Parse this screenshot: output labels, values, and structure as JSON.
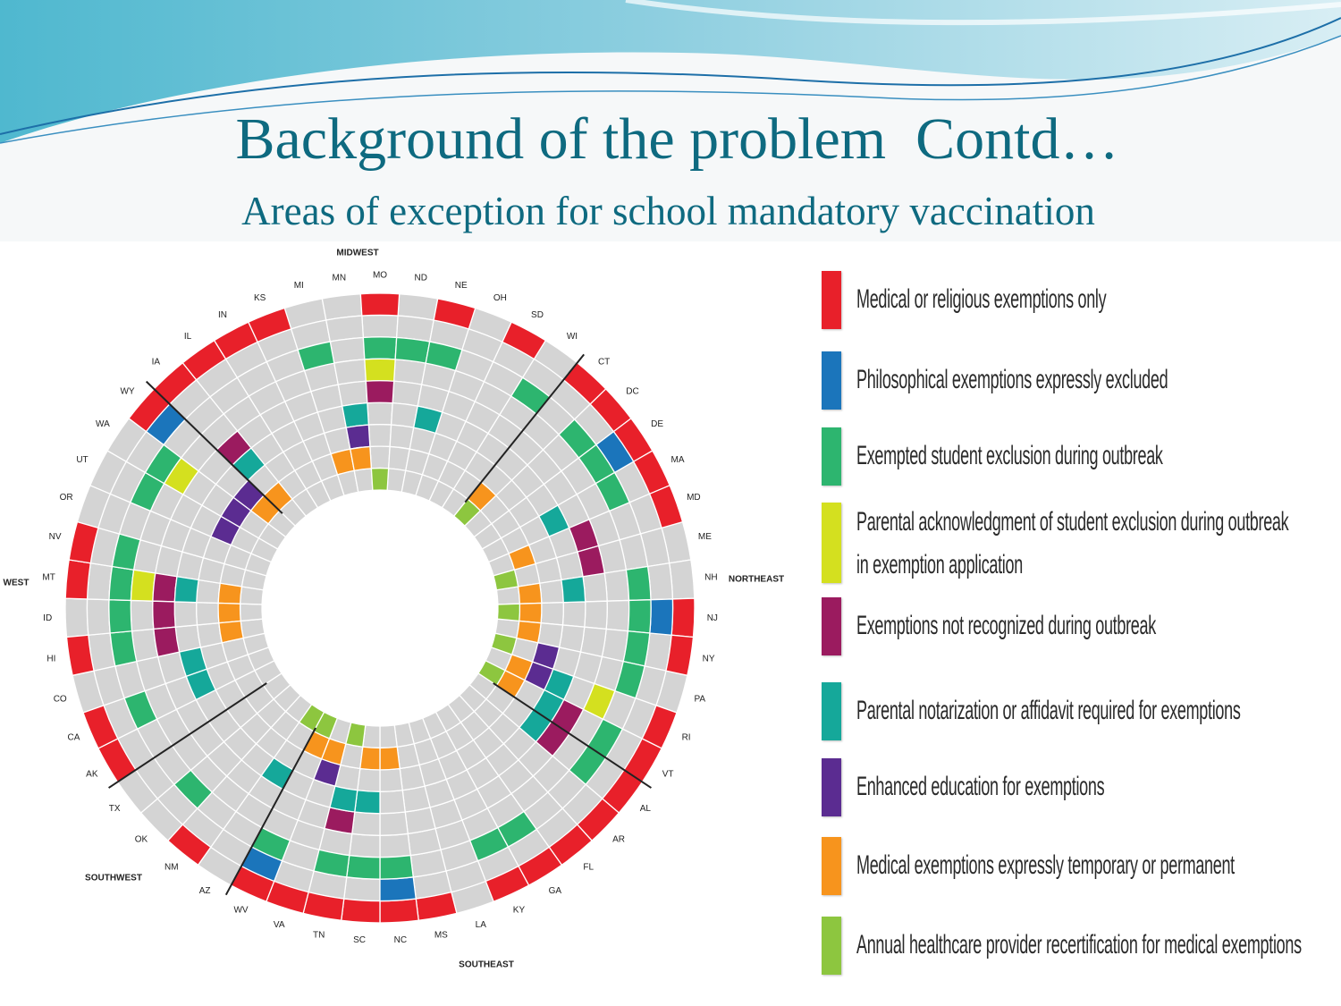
{
  "title": "Background of the problem  Contd…",
  "subtitle": "Areas of exception for school mandatory vaccination",
  "chart_data": {
    "type": "radial",
    "states": [
      "MO",
      "ND",
      "NE",
      "OH",
      "SD",
      "WI",
      "CT",
      "DC",
      "DE",
      "MA",
      "MD",
      "ME",
      "NH",
      "NJ",
      "NY",
      "PA",
      "RI",
      "VT",
      "AL",
      "AR",
      "FL",
      "GA",
      "KY",
      "LA",
      "MS",
      "NC",
      "SC",
      "TN",
      "VA",
      "WV",
      "AZ",
      "NM",
      "OK",
      "TX",
      "AK",
      "CA",
      "CO",
      "HI",
      "ID",
      "MT",
      "NV",
      "OR",
      "UT",
      "WA",
      "WY",
      "IA",
      "IL",
      "IN",
      "KS",
      "MI",
      "MN"
    ],
    "regions": [
      "MIDWEST",
      "NORTHEAST",
      "SOUTHEAST",
      "SOUTHWEST",
      "WEST"
    ],
    "series": [
      {
        "name": "Medical or religious exemptions only",
        "color": "#e8202a",
        "members": [
          "MO",
          "NE",
          "SD",
          "CT",
          "DC",
          "DE",
          "MA",
          "MD",
          "NJ",
          "NY",
          "RI",
          "VT",
          "AL",
          "AR",
          "FL",
          "GA",
          "KY",
          "MS",
          "NC",
          "SC",
          "TN",
          "VA",
          "WV",
          "NM",
          "AK",
          "CA",
          "HI",
          "MT",
          "NV",
          "WY",
          "IA",
          "IL",
          "IN",
          "KS"
        ]
      },
      {
        "name": "Philosophical exemptions expressly excluded",
        "color": "#1b75bb",
        "members": [
          "WY",
          "DE",
          "NJ",
          "NC",
          "WV"
        ]
      },
      {
        "name": "Exempted student exclusion during outbreak",
        "color": "#2db56f",
        "members": [
          "MI",
          "MO",
          "ND",
          "NE",
          "WI",
          "DC",
          "DE",
          "MA",
          "NH",
          "NJ",
          "NY",
          "PA",
          "VT",
          "AL",
          "GA",
          "KY",
          "NC",
          "SC",
          "TN",
          "WV",
          "OK",
          "CA",
          "HI",
          "ID",
          "MT",
          "NV",
          "UT",
          "WA"
        ]
      },
      {
        "name": "Parental acknowledgment of student exclusion during outbreak in exemption application",
        "color": "#d4e01f",
        "members": [
          "MO",
          "WA",
          "MT",
          "RI"
        ]
      },
      {
        "name": "Exemptions not recognized during outbreak",
        "color": "#9b1b5f",
        "members": [
          "MO",
          "IA",
          "MD",
          "ME",
          "MT",
          "ID",
          "HI",
          "VT",
          "AL",
          "TN"
        ]
      },
      {
        "name": "Parental notarization or affidavit required for exemptions",
        "color": "#15a89a",
        "members": [
          "MN",
          "NE",
          "IA",
          "MA",
          "NH",
          "MT",
          "CO",
          "CA",
          "RI",
          "VT",
          "AL",
          "SC",
          "TN",
          "AZ"
        ]
      },
      {
        "name": "Enhanced education for exemptions",
        "color": "#5b2c91",
        "members": [
          "MN",
          "UT",
          "WA",
          "WY",
          "PA",
          "RI",
          "VA"
        ]
      },
      {
        "name": "Medical exemptions expressly temporary or permanent",
        "color": "#f7941d",
        "members": [
          "MI",
          "MN",
          "IA",
          "WY",
          "CT",
          "MD",
          "NH",
          "NJ",
          "NY",
          "RI",
          "VT",
          "NC",
          "SC",
          "VA",
          "WV",
          "MT",
          "ID",
          "HI"
        ]
      },
      {
        "name": "Annual healthcare provider recertification for medical exemptions",
        "color": "#8dc63f",
        "members": [
          "MO",
          "CT",
          "ME",
          "NJ",
          "PA",
          "VT",
          "TN",
          "WV",
          "AZ"
        ]
      }
    ]
  }
}
